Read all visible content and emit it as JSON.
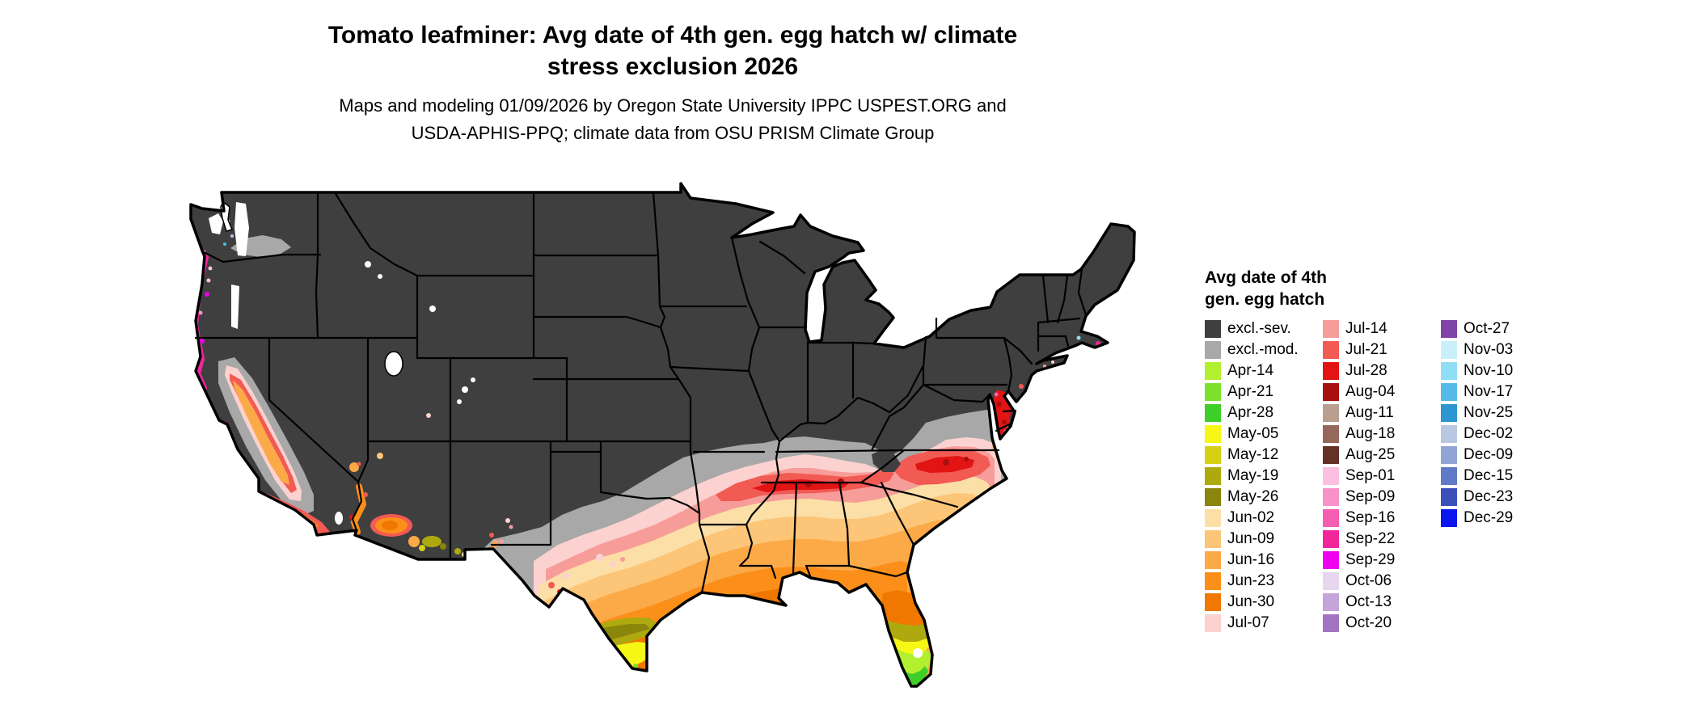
{
  "page": {
    "background": "#ffffff"
  },
  "header": {
    "title_line1": "Tomato leafminer: Avg date of 4th gen. egg hatch w/ climate",
    "title_line2": "stress exclusion 2026",
    "subtitle_line1": "Maps and modeling 01/09/2026 by Oregon State University IPPC USPEST.ORG and",
    "subtitle_line2": "USDA-APHIS-PPQ; climate data from OSU PRISM Climate Group"
  },
  "map": {
    "colors": {
      "border": "#000000",
      "water": "#ffffff"
    }
  },
  "legend": {
    "title_line1": "Avg date of 4th",
    "title_line2": "gen. egg hatch",
    "columns": [
      {
        "items": [
          {
            "key": "excl_sev",
            "label": "excl.-sev.",
            "color": "#3f3f3f"
          },
          {
            "key": "excl_mod",
            "label": "excl.-mod.",
            "color": "#a8a8a8"
          },
          {
            "key": "apr14",
            "label": "Apr-14",
            "color": "#b2ef2f"
          },
          {
            "key": "apr21",
            "label": "Apr-21",
            "color": "#7be12c"
          },
          {
            "key": "apr28",
            "label": "Apr-28",
            "color": "#3ecf2a"
          },
          {
            "key": "may05",
            "label": "May-05",
            "color": "#f7f716"
          },
          {
            "key": "may12",
            "label": "May-12",
            "color": "#d6d013"
          },
          {
            "key": "may19",
            "label": "May-19",
            "color": "#aea90f"
          },
          {
            "key": "may26",
            "label": "May-26",
            "color": "#8a850b"
          },
          {
            "key": "jun02",
            "label": "Jun-02",
            "color": "#fcdfa6"
          },
          {
            "key": "jun09",
            "label": "Jun-09",
            "color": "#fcc577"
          },
          {
            "key": "jun16",
            "label": "Jun-16",
            "color": "#fcaa48"
          },
          {
            "key": "jun23",
            "label": "Jun-23",
            "color": "#fc8f1a"
          },
          {
            "key": "jun30",
            "label": "Jun-30",
            "color": "#f07800"
          },
          {
            "key": "jul07",
            "label": "Jul-07",
            "color": "#fbd2cf"
          }
        ]
      },
      {
        "items": [
          {
            "key": "jul14",
            "label": "Jul-14",
            "color": "#f79d99"
          },
          {
            "key": "jul21",
            "label": "Jul-21",
            "color": "#f25a54"
          },
          {
            "key": "jul28",
            "label": "Jul-28",
            "color": "#e31414"
          },
          {
            "key": "aug04",
            "label": "Aug-04",
            "color": "#a90f0f"
          },
          {
            "key": "aug11",
            "label": "Aug-11",
            "color": "#b99e92"
          },
          {
            "key": "aug18",
            "label": "Aug-18",
            "color": "#96675b"
          },
          {
            "key": "aug25",
            "label": "Aug-25",
            "color": "#653227"
          },
          {
            "key": "sep01",
            "label": "Sep-01",
            "color": "#fbc0df"
          },
          {
            "key": "sep09",
            "label": "Sep-09",
            "color": "#f892c8"
          },
          {
            "key": "sep16",
            "label": "Sep-16",
            "color": "#f55eb1"
          },
          {
            "key": "sep22",
            "label": "Sep-22",
            "color": "#f2269a"
          },
          {
            "key": "sep29",
            "label": "Sep-29",
            "color": "#ee00ee"
          },
          {
            "key": "oct06",
            "label": "Oct-06",
            "color": "#e6d7ef"
          },
          {
            "key": "oct13",
            "label": "Oct-13",
            "color": "#c4a4da"
          },
          {
            "key": "oct20",
            "label": "Oct-20",
            "color": "#a274c2"
          }
        ]
      },
      {
        "items": [
          {
            "key": "oct27",
            "label": "Oct-27",
            "color": "#7f44a5"
          },
          {
            "key": "nov03",
            "label": "Nov-03",
            "color": "#c9effb"
          },
          {
            "key": "nov10",
            "label": "Nov-10",
            "color": "#90def5"
          },
          {
            "key": "nov17",
            "label": "Nov-17",
            "color": "#56bae6"
          },
          {
            "key": "nov25",
            "label": "Nov-25",
            "color": "#2b96cf"
          },
          {
            "key": "dec02",
            "label": "Dec-02",
            "color": "#bac7e3"
          },
          {
            "key": "dec09",
            "label": "Dec-09",
            "color": "#90a5d6"
          },
          {
            "key": "dec15",
            "label": "Dec-15",
            "color": "#617ac7"
          },
          {
            "key": "dec23",
            "label": "Dec-23",
            "color": "#3c50ba"
          },
          {
            "key": "dec29",
            "label": "Dec-29",
            "color": "#0b16ee"
          }
        ]
      }
    ]
  }
}
